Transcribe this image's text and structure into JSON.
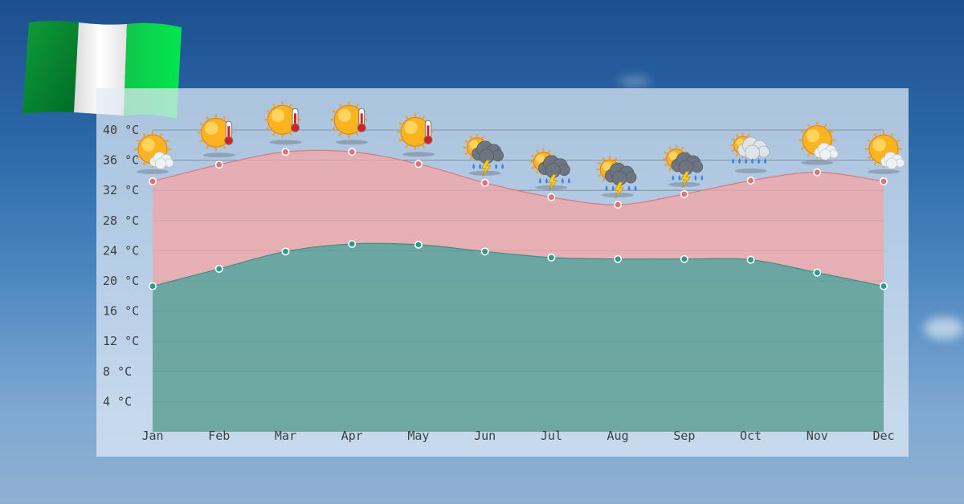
{
  "flag_icon": "nigeria-flag-icon",
  "colors": {
    "max_area": "#f2a7a7",
    "min_area": "#5c9d93",
    "max_point": "#e27272",
    "min_point": "#2e9a87",
    "grid": "#6a6f75"
  },
  "chart_data": {
    "type": "area",
    "categories": [
      "Jan",
      "Feb",
      "Mar",
      "Apr",
      "May",
      "Jun",
      "Jul",
      "Aug",
      "Sep",
      "Oct",
      "Nov",
      "Dec"
    ],
    "y_tick_labels": [
      "4 °C",
      "8 °C",
      "12 °C",
      "16 °C",
      "20 °C",
      "24 °C",
      "28 °C",
      "32 °C",
      "36 °C",
      "40 °C"
    ],
    "y_ticks": [
      4,
      8,
      12,
      16,
      20,
      24,
      28,
      32,
      36,
      40
    ],
    "ylim": [
      0,
      40
    ],
    "grid": true,
    "series": [
      {
        "values": [
          33.2,
          35.4,
          37.1,
          37.1,
          35.5,
          33.0,
          31.1,
          30.1,
          31.5,
          33.3,
          34.4,
          33.2
        ]
      },
      {
        "values": [
          19.3,
          21.6,
          23.9,
          24.9,
          24.8,
          23.9,
          23.1,
          22.9,
          22.9,
          22.8,
          21.1,
          19.3
        ]
      }
    ],
    "weather_icons": [
      "sun-cloud-icon",
      "hot-sun-thermometer-icon",
      "hot-sun-thermometer-icon",
      "hot-sun-thermometer-icon",
      "hot-sun-thermometer-icon",
      "thunderstorm-icon",
      "thunderstorm-icon",
      "thunderstorm-icon",
      "thunderstorm-icon",
      "rain-cloud-icon",
      "sun-cloud-icon",
      "sun-cloud-icon"
    ]
  }
}
